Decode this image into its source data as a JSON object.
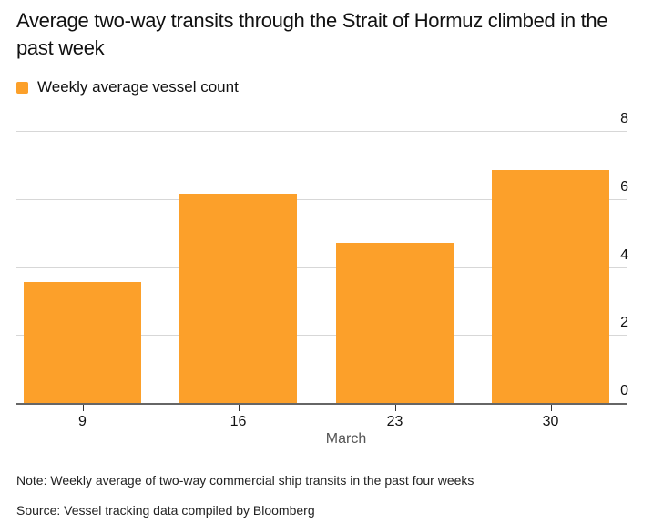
{
  "title": "Average two-way transits through the Strait of Hormuz climbed in the past week",
  "legend": {
    "label": "Weekly average vessel count",
    "color": "#fca02a"
  },
  "note": "Note: Weekly average of two-way commercial ship transits in the past four weeks",
  "source": "Source: Vessel tracking data compiled by Bloomberg",
  "chart_data": {
    "type": "bar",
    "title": "Average two-way transits through the Strait of Hormuz climbed in the past week",
    "xlabel": "March",
    "ylabel": "",
    "categories": [
      "9",
      "16",
      "23",
      "30"
    ],
    "series": [
      {
        "name": "Weekly average vessel count",
        "values": [
          3.55,
          6.15,
          4.7,
          6.85
        ],
        "color": "#fca02a"
      }
    ],
    "ylim": [
      0,
      8
    ],
    "yticks": [
      "0",
      "2",
      "4",
      "6",
      "8"
    ],
    "y_axis_position": "right",
    "grid": true,
    "legend_position": "top-left"
  }
}
